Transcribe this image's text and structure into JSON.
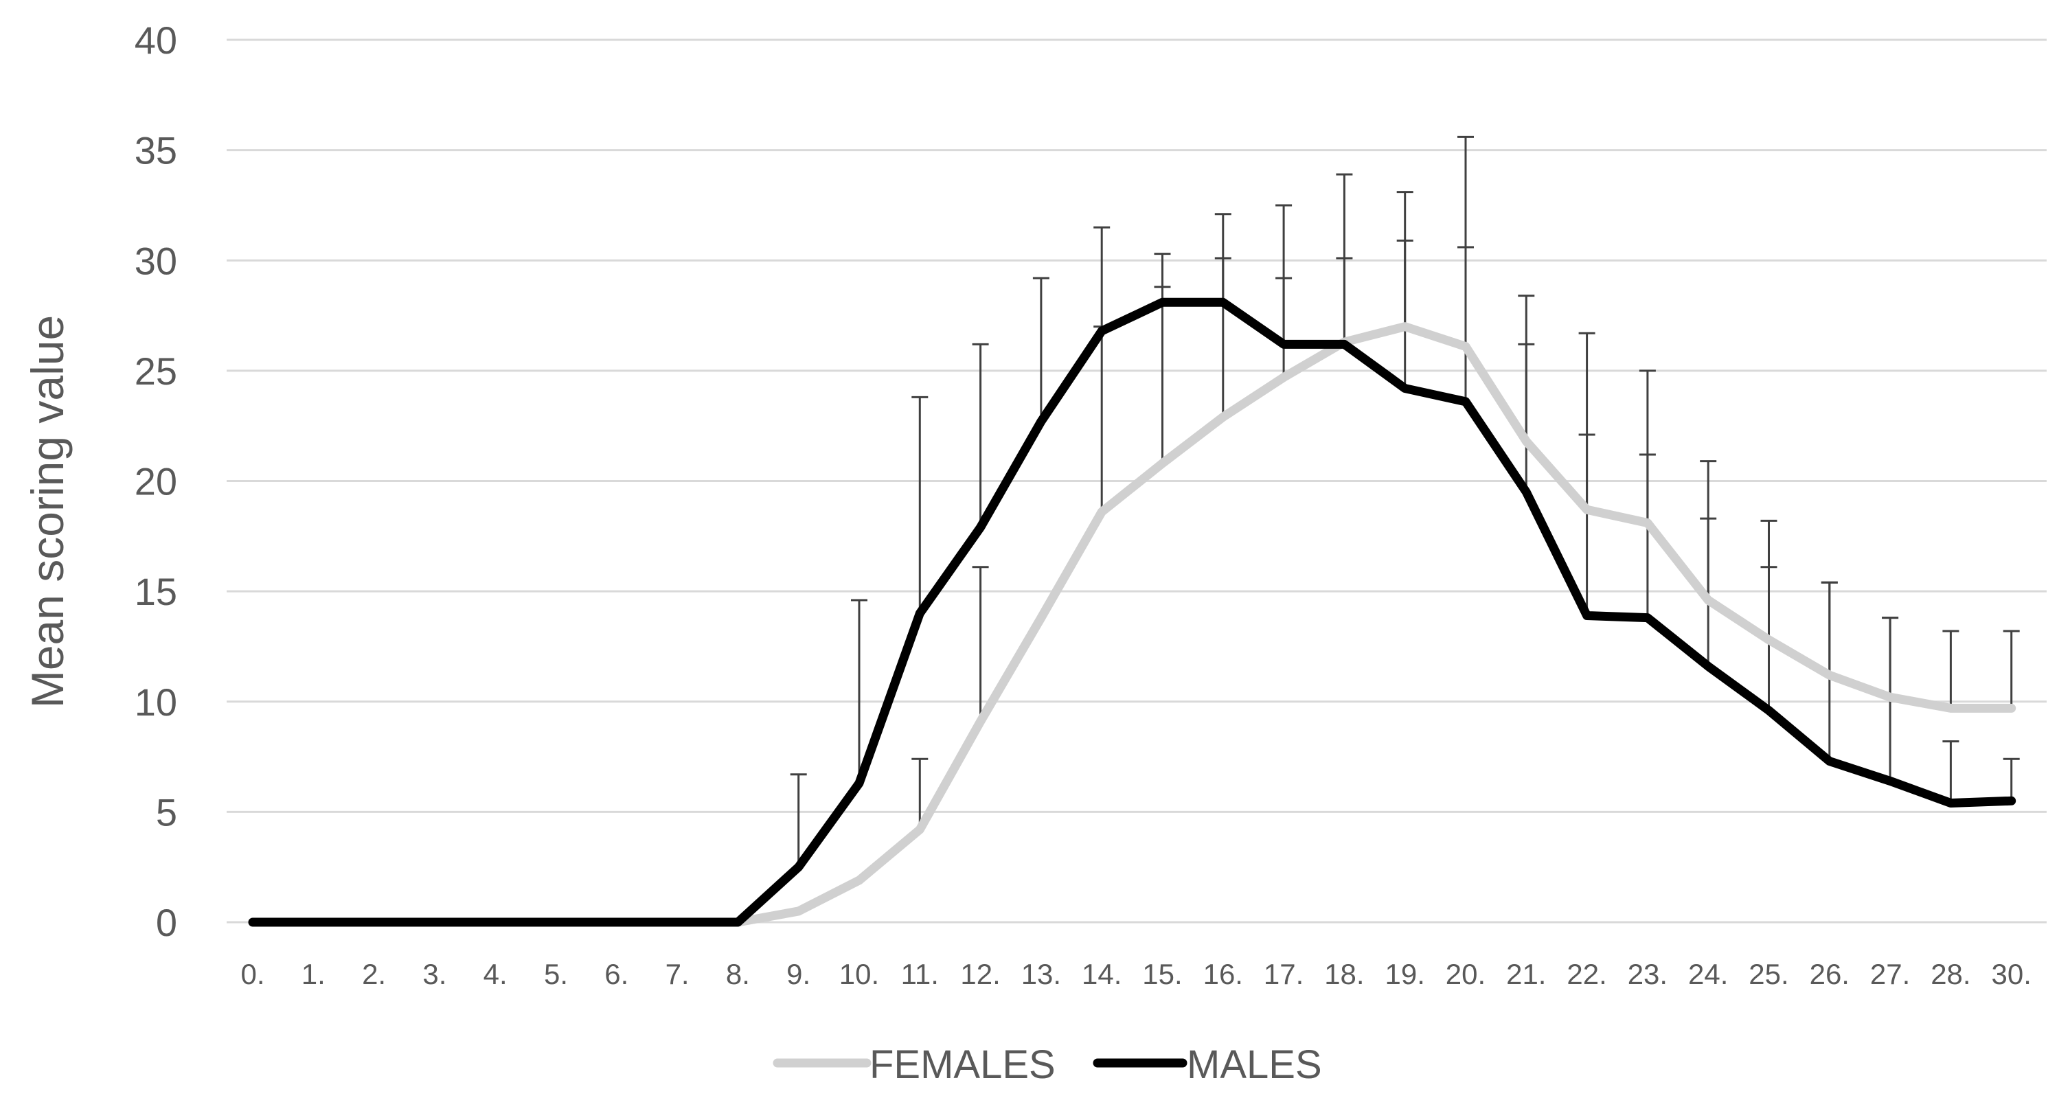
{
  "chart_data": {
    "type": "line",
    "title": "",
    "xlabel": "",
    "ylabel": "Mean scoring value",
    "ylim": [
      0,
      40
    ],
    "yticks": [
      0,
      5,
      10,
      15,
      20,
      25,
      30,
      35,
      40
    ],
    "grid": true,
    "legend_position": "bottom",
    "categories": [
      "0.",
      "1.",
      "2.",
      "3.",
      "4.",
      "5.",
      "6.",
      "7.",
      "8.",
      "9.",
      "10.",
      "11.",
      "12.",
      "13.",
      "14.",
      "15.",
      "16.",
      "17.",
      "18.",
      "19.",
      "20.",
      "21.",
      "22.",
      "23.",
      "24.",
      "25.",
      "26.",
      "27.",
      "28.",
      "30."
    ],
    "series": [
      {
        "name": "FEMALES",
        "color": "#d0d0d0",
        "values": [
          0,
          0,
          0,
          0,
          0,
          0,
          0,
          0,
          0,
          0.5,
          1.9,
          4.2,
          9.1,
          13.8,
          18.6,
          20.8,
          22.9,
          24.7,
          26.3,
          27.0,
          26.1,
          21.8,
          18.7,
          18.1,
          14.6,
          12.8,
          11.2,
          10.2,
          9.7,
          9.7
        ],
        "error_upper": [
          null,
          null,
          null,
          null,
          null,
          null,
          null,
          null,
          null,
          null,
          null,
          7.4,
          16.1,
          null,
          27.0,
          28.8,
          30.1,
          29.2,
          30.1,
          30.9,
          30.6,
          26.2,
          22.1,
          21.2,
          18.3,
          16.1,
          15.4,
          13.8,
          13.2,
          13.2
        ]
      },
      {
        "name": "MALES",
        "color": "#000000",
        "values": [
          0,
          0,
          0,
          0,
          0,
          0,
          0,
          0,
          0,
          2.5,
          6.3,
          14.0,
          17.9,
          22.7,
          26.8,
          28.1,
          28.1,
          26.2,
          26.2,
          24.2,
          23.6,
          19.5,
          13.9,
          13.8,
          11.6,
          9.6,
          7.3,
          6.4,
          5.4,
          5.5
        ],
        "error_upper": [
          null,
          null,
          null,
          null,
          null,
          null,
          null,
          null,
          null,
          6.7,
          14.6,
          23.8,
          26.2,
          29.2,
          31.5,
          30.3,
          32.1,
          32.5,
          33.9,
          33.1,
          35.6,
          28.4,
          26.7,
          25.0,
          20.9,
          18.2,
          15.4,
          13.8,
          8.2,
          7.4
        ]
      }
    ]
  }
}
